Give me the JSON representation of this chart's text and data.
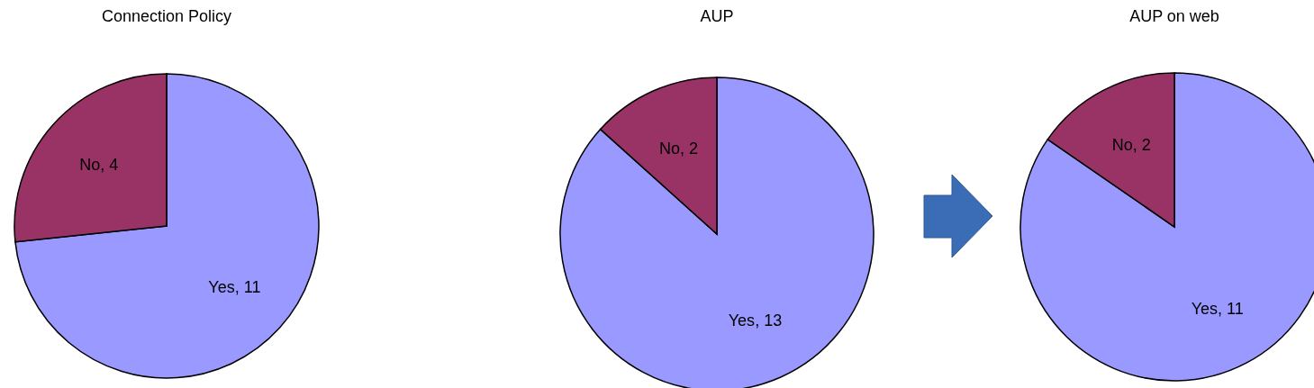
{
  "chart_data": [
    {
      "type": "pie",
      "title": "Connection Policy",
      "categories": [
        "Yes",
        "No"
      ],
      "values": [
        11,
        4
      ],
      "colors": [
        "#9999ff",
        "#993366"
      ],
      "value_labels": [
        ", 11",
        ", 4"
      ]
    },
    {
      "type": "pie",
      "title": "AUP",
      "categories": [
        "Yes",
        "No"
      ],
      "values": [
        13,
        2
      ],
      "colors": [
        "#9999ff",
        "#993366"
      ],
      "value_labels": [
        ", 13",
        ", 2"
      ]
    },
    {
      "type": "pie",
      "title": "AUP on web",
      "categories": [
        "Yes",
        "No"
      ],
      "values": [
        11,
        2
      ],
      "colors": [
        "#9999ff",
        "#993366"
      ],
      "value_labels": [
        ", 11",
        ", 2"
      ]
    }
  ]
}
